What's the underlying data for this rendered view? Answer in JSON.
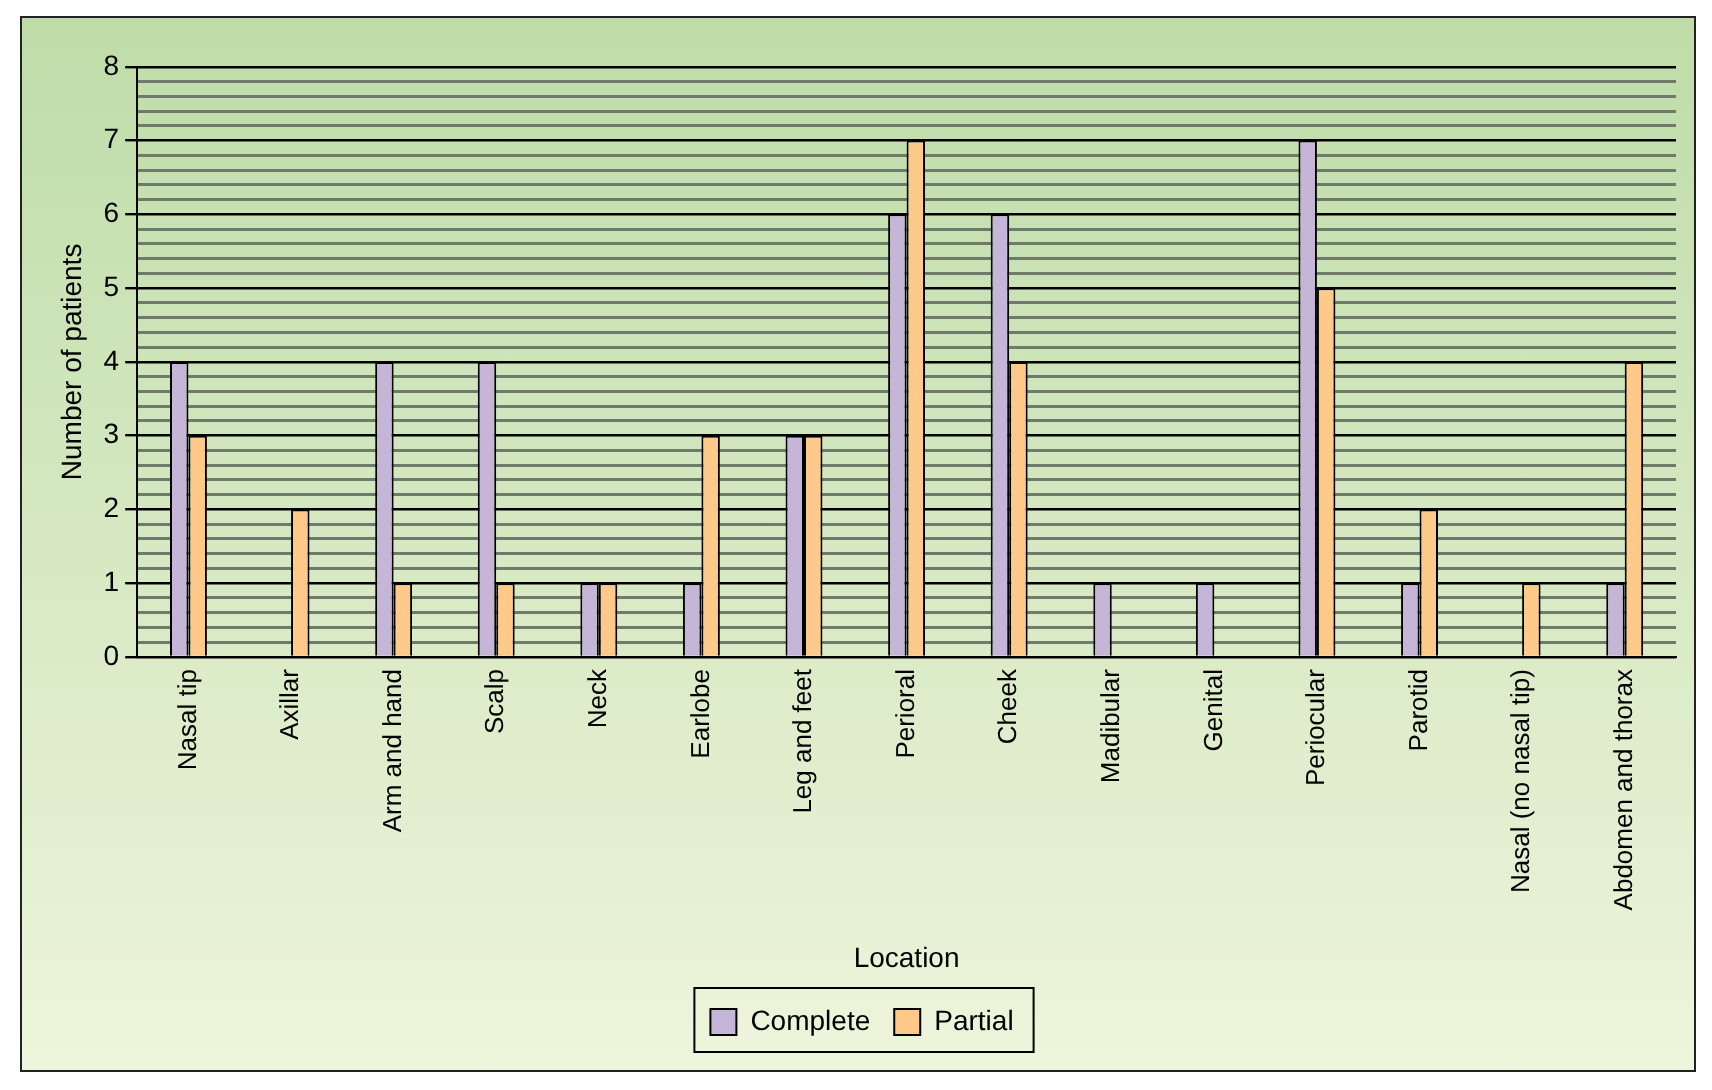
{
  "chart_data": {
    "type": "bar",
    "xlabel": "Location",
    "ylabel": "Number of patients",
    "categories": [
      "Nasal tip",
      "Axillar",
      "Arm and hand",
      "Scalp",
      "Neck",
      "Earlobe",
      "Leg and feet",
      "Perioral",
      "Cheek",
      "Madibular",
      "Genital",
      "Periocular",
      "Parotid",
      "Nasal (no nasal tip)",
      "Abdomen and thorax"
    ],
    "series": [
      {
        "name": "Complete",
        "color": "#c5b6d8",
        "values": [
          4,
          0,
          4,
          4,
          1,
          1,
          3,
          6,
          6,
          1,
          1,
          7,
          1,
          0,
          1
        ]
      },
      {
        "name": "Partial",
        "color": "#ffc98a",
        "values": [
          3,
          2,
          1,
          1,
          1,
          3,
          3,
          7,
          4,
          0,
          0,
          5,
          2,
          1,
          4
        ]
      }
    ],
    "ylim": [
      0,
      8
    ],
    "yticks": [
      0,
      {
        "value": 0.2,
        "label": null
      },
      {
        "value": 0.4,
        "label": null
      },
      {
        "value": 0.6,
        "label": null
      },
      {
        "value": 0.8,
        "label": null
      },
      1,
      {
        "value": 1.2,
        "label": null
      },
      {
        "value": 1.4,
        "label": null
      },
      {
        "value": 1.6,
        "label": null
      },
      {
        "value": 1.8,
        "label": null
      },
      2,
      {
        "value": 2.2,
        "label": null
      },
      {
        "value": 2.4,
        "label": null
      },
      {
        "value": 2.6,
        "label": null
      },
      {
        "value": 2.8,
        "label": null
      },
      3,
      {
        "value": 3.2,
        "label": null
      },
      {
        "value": 3.4,
        "label": null
      },
      {
        "value": 3.6,
        "label": null
      },
      {
        "value": 3.8,
        "label": null
      },
      4,
      {
        "value": 4.2,
        "label": null
      },
      {
        "value": 4.4,
        "label": null
      },
      {
        "value": 4.6,
        "label": null
      },
      {
        "value": 4.8,
        "label": null
      },
      5,
      {
        "value": 5.2,
        "label": null
      },
      {
        "value": 5.4,
        "label": null
      },
      {
        "value": 5.6,
        "label": null
      },
      {
        "value": 5.8,
        "label": null
      },
      6,
      {
        "value": 6.2,
        "label": null
      },
      {
        "value": 6.4,
        "label": null
      },
      {
        "value": 6.6,
        "label": null
      },
      {
        "value": 6.8,
        "label": null
      },
      7,
      {
        "value": 7.2,
        "label": null
      },
      {
        "value": 7.4,
        "label": null
      },
      {
        "value": 7.6,
        "label": null
      },
      {
        "value": 7.8,
        "label": null
      },
      8
    ],
    "grid": "y",
    "legend": "bottom"
  }
}
